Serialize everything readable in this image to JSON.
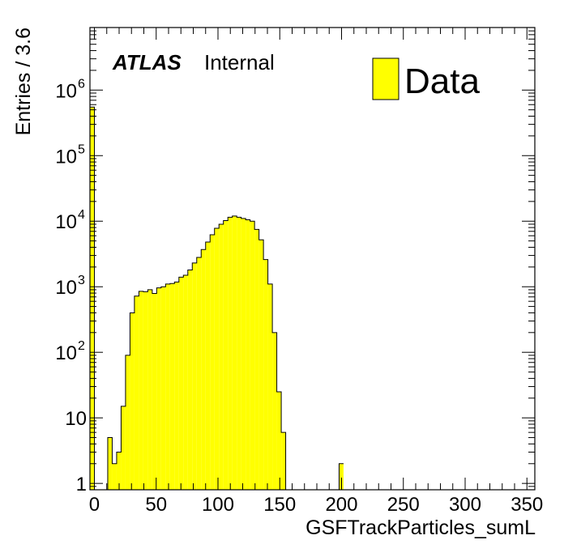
{
  "chart_data": {
    "type": "bar",
    "style": "step-filled-histogram",
    "xlabel": "GSFTrackParticles_sumL",
    "ylabel": "Entries / 3.6",
    "xlim": [
      -3.6,
      356.4
    ],
    "ylim": [
      0.8,
      9000000
    ],
    "y_scale": "log",
    "grid": false,
    "legend": {
      "placement": "top-right",
      "entries": [
        {
          "name": "Data",
          "color": "#ffff00"
        }
      ]
    },
    "x_ticks": [
      "0",
      "50",
      "100",
      "150",
      "200",
      "250",
      "300",
      "350"
    ],
    "y_ticks": [
      {
        "base": "1",
        "exp": ""
      },
      {
        "base": "10",
        "exp": ""
      },
      {
        "base": "10",
        "exp": "2"
      },
      {
        "base": "10",
        "exp": "3"
      },
      {
        "base": "10",
        "exp": "4"
      },
      {
        "base": "10",
        "exp": "5"
      },
      {
        "base": "10",
        "exp": "6"
      }
    ],
    "atlas_label": "ATLAS",
    "atlas_sublabel": "Internal",
    "bin_width": 3.6,
    "x_start": -3.6,
    "series": [
      {
        "name": "Data",
        "fill": "#ffff00",
        "line": "#000000",
        "values": [
          550000,
          0,
          0,
          0,
          5,
          2,
          3,
          15,
          90,
          400,
          720,
          850,
          840,
          900,
          790,
          960,
          1000,
          1100,
          1120,
          1180,
          1400,
          1500,
          1800,
          2300,
          2800,
          3700,
          4800,
          6200,
          7800,
          9000,
          10200,
          11500,
          12000,
          11500,
          11000,
          10500,
          10000,
          7500,
          5200,
          2600,
          1100,
          200,
          25,
          6,
          0,
          0,
          0,
          0,
          0,
          0,
          0,
          0,
          0,
          0,
          0,
          0,
          2
        ]
      }
    ]
  }
}
